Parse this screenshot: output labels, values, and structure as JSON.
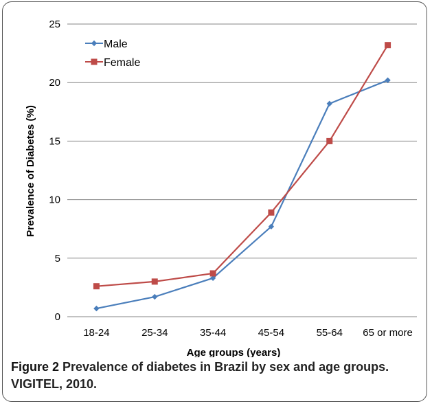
{
  "chart_data": {
    "type": "line",
    "categories": [
      "18-24",
      "25-34",
      "35-44",
      "45-54",
      "55-64",
      "65 or more"
    ],
    "series": [
      {
        "name": "Male",
        "values": [
          0.7,
          1.7,
          3.3,
          7.7,
          18.2,
          20.2
        ],
        "color": "#4a7ebb",
        "marker": "diamond"
      },
      {
        "name": "Female",
        "values": [
          2.6,
          3.0,
          3.7,
          8.9,
          15.0,
          23.2
        ],
        "color": "#be4b48",
        "marker": "square"
      }
    ],
    "xlabel": "Age groups (years)",
    "ylabel": "Prevalence of Diabetes (%)",
    "ylim": [
      0,
      25
    ],
    "yticks": [
      0,
      5,
      10,
      15,
      20,
      25
    ],
    "grid": true,
    "legend": "top-left"
  },
  "caption": {
    "label": "Figure 2",
    "text": " Prevalence of diabetes in Brazil by sex and age groups. VIGITEL, 2010."
  }
}
